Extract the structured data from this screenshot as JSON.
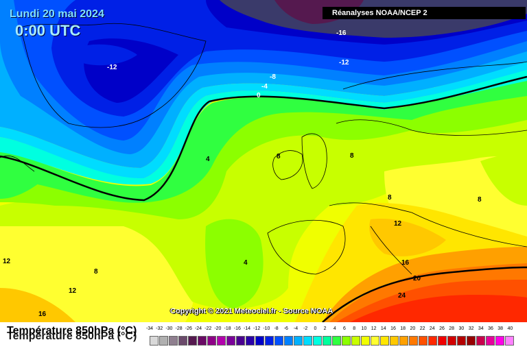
{
  "header": {
    "date": "Lundi 20 mai 2024",
    "time": "0:00 UTC",
    "source": "Réanalyses NOAA/NCEP 2",
    "copyright": "Copyright © 2021 Meteociel.fr - Source NOAA"
  },
  "legend": {
    "title": "Température 850hPa (°C)",
    "ticks": [
      "-34",
      "-32",
      "-30",
      "-28",
      "-26",
      "-24",
      "-22",
      "-20",
      "-18",
      "-16",
      "-14",
      "-12",
      "-10",
      "-8",
      "-6",
      "-4",
      "-2",
      "0",
      "2",
      "4",
      "6",
      "8",
      "10",
      "12",
      "14",
      "16",
      "18",
      "20",
      "22",
      "24",
      "26",
      "28",
      "30",
      "32",
      "34",
      "36",
      "38",
      "40"
    ],
    "colors": [
      "#d9d9d9",
      "#b0b0b0",
      "#8f7f8f",
      "#6b4a6b",
      "#55194f",
      "#6a0a65",
      "#8e0087",
      "#b200ac",
      "#7a009a",
      "#4a0090",
      "#2a00a8",
      "#0000c8",
      "#0020e6",
      "#0050ff",
      "#0080ff",
      "#00b0ff",
      "#00dcff",
      "#00ffe0",
      "#00ff9c",
      "#30ff40",
      "#8cff00",
      "#c8ff00",
      "#f0ff00",
      "#ffff30",
      "#ffe600",
      "#ffc800",
      "#ffa000",
      "#ff7800",
      "#ff5000",
      "#ff2800",
      "#f00000",
      "#d20000",
      "#b40000",
      "#960000",
      "#c8004c",
      "#e6009c",
      "#ff00e6",
      "#ff80ff"
    ]
  },
  "contour_labels": [
    {
      "text": "-16",
      "color": "white"
    },
    {
      "text": "-12",
      "color": "white"
    },
    {
      "text": "-12",
      "color": "white"
    },
    {
      "text": "-8",
      "color": "white"
    },
    {
      "text": "-4",
      "color": "white"
    },
    {
      "text": "0",
      "color": "white"
    },
    {
      "text": "4",
      "color": "black"
    },
    {
      "text": "4",
      "color": "black"
    },
    {
      "text": "8",
      "color": "black"
    },
    {
      "text": "8",
      "color": "black"
    },
    {
      "text": "8",
      "color": "black"
    },
    {
      "text": "8",
      "color": "black"
    },
    {
      "text": "8",
      "color": "black"
    },
    {
      "text": "12",
      "color": "black"
    },
    {
      "text": "12",
      "color": "black"
    },
    {
      "text": "12",
      "color": "black"
    },
    {
      "text": "16",
      "color": "black"
    },
    {
      "text": "16",
      "color": "black"
    },
    {
      "text": "20",
      "color": "black"
    },
    {
      "text": "24",
      "color": "black"
    }
  ]
}
